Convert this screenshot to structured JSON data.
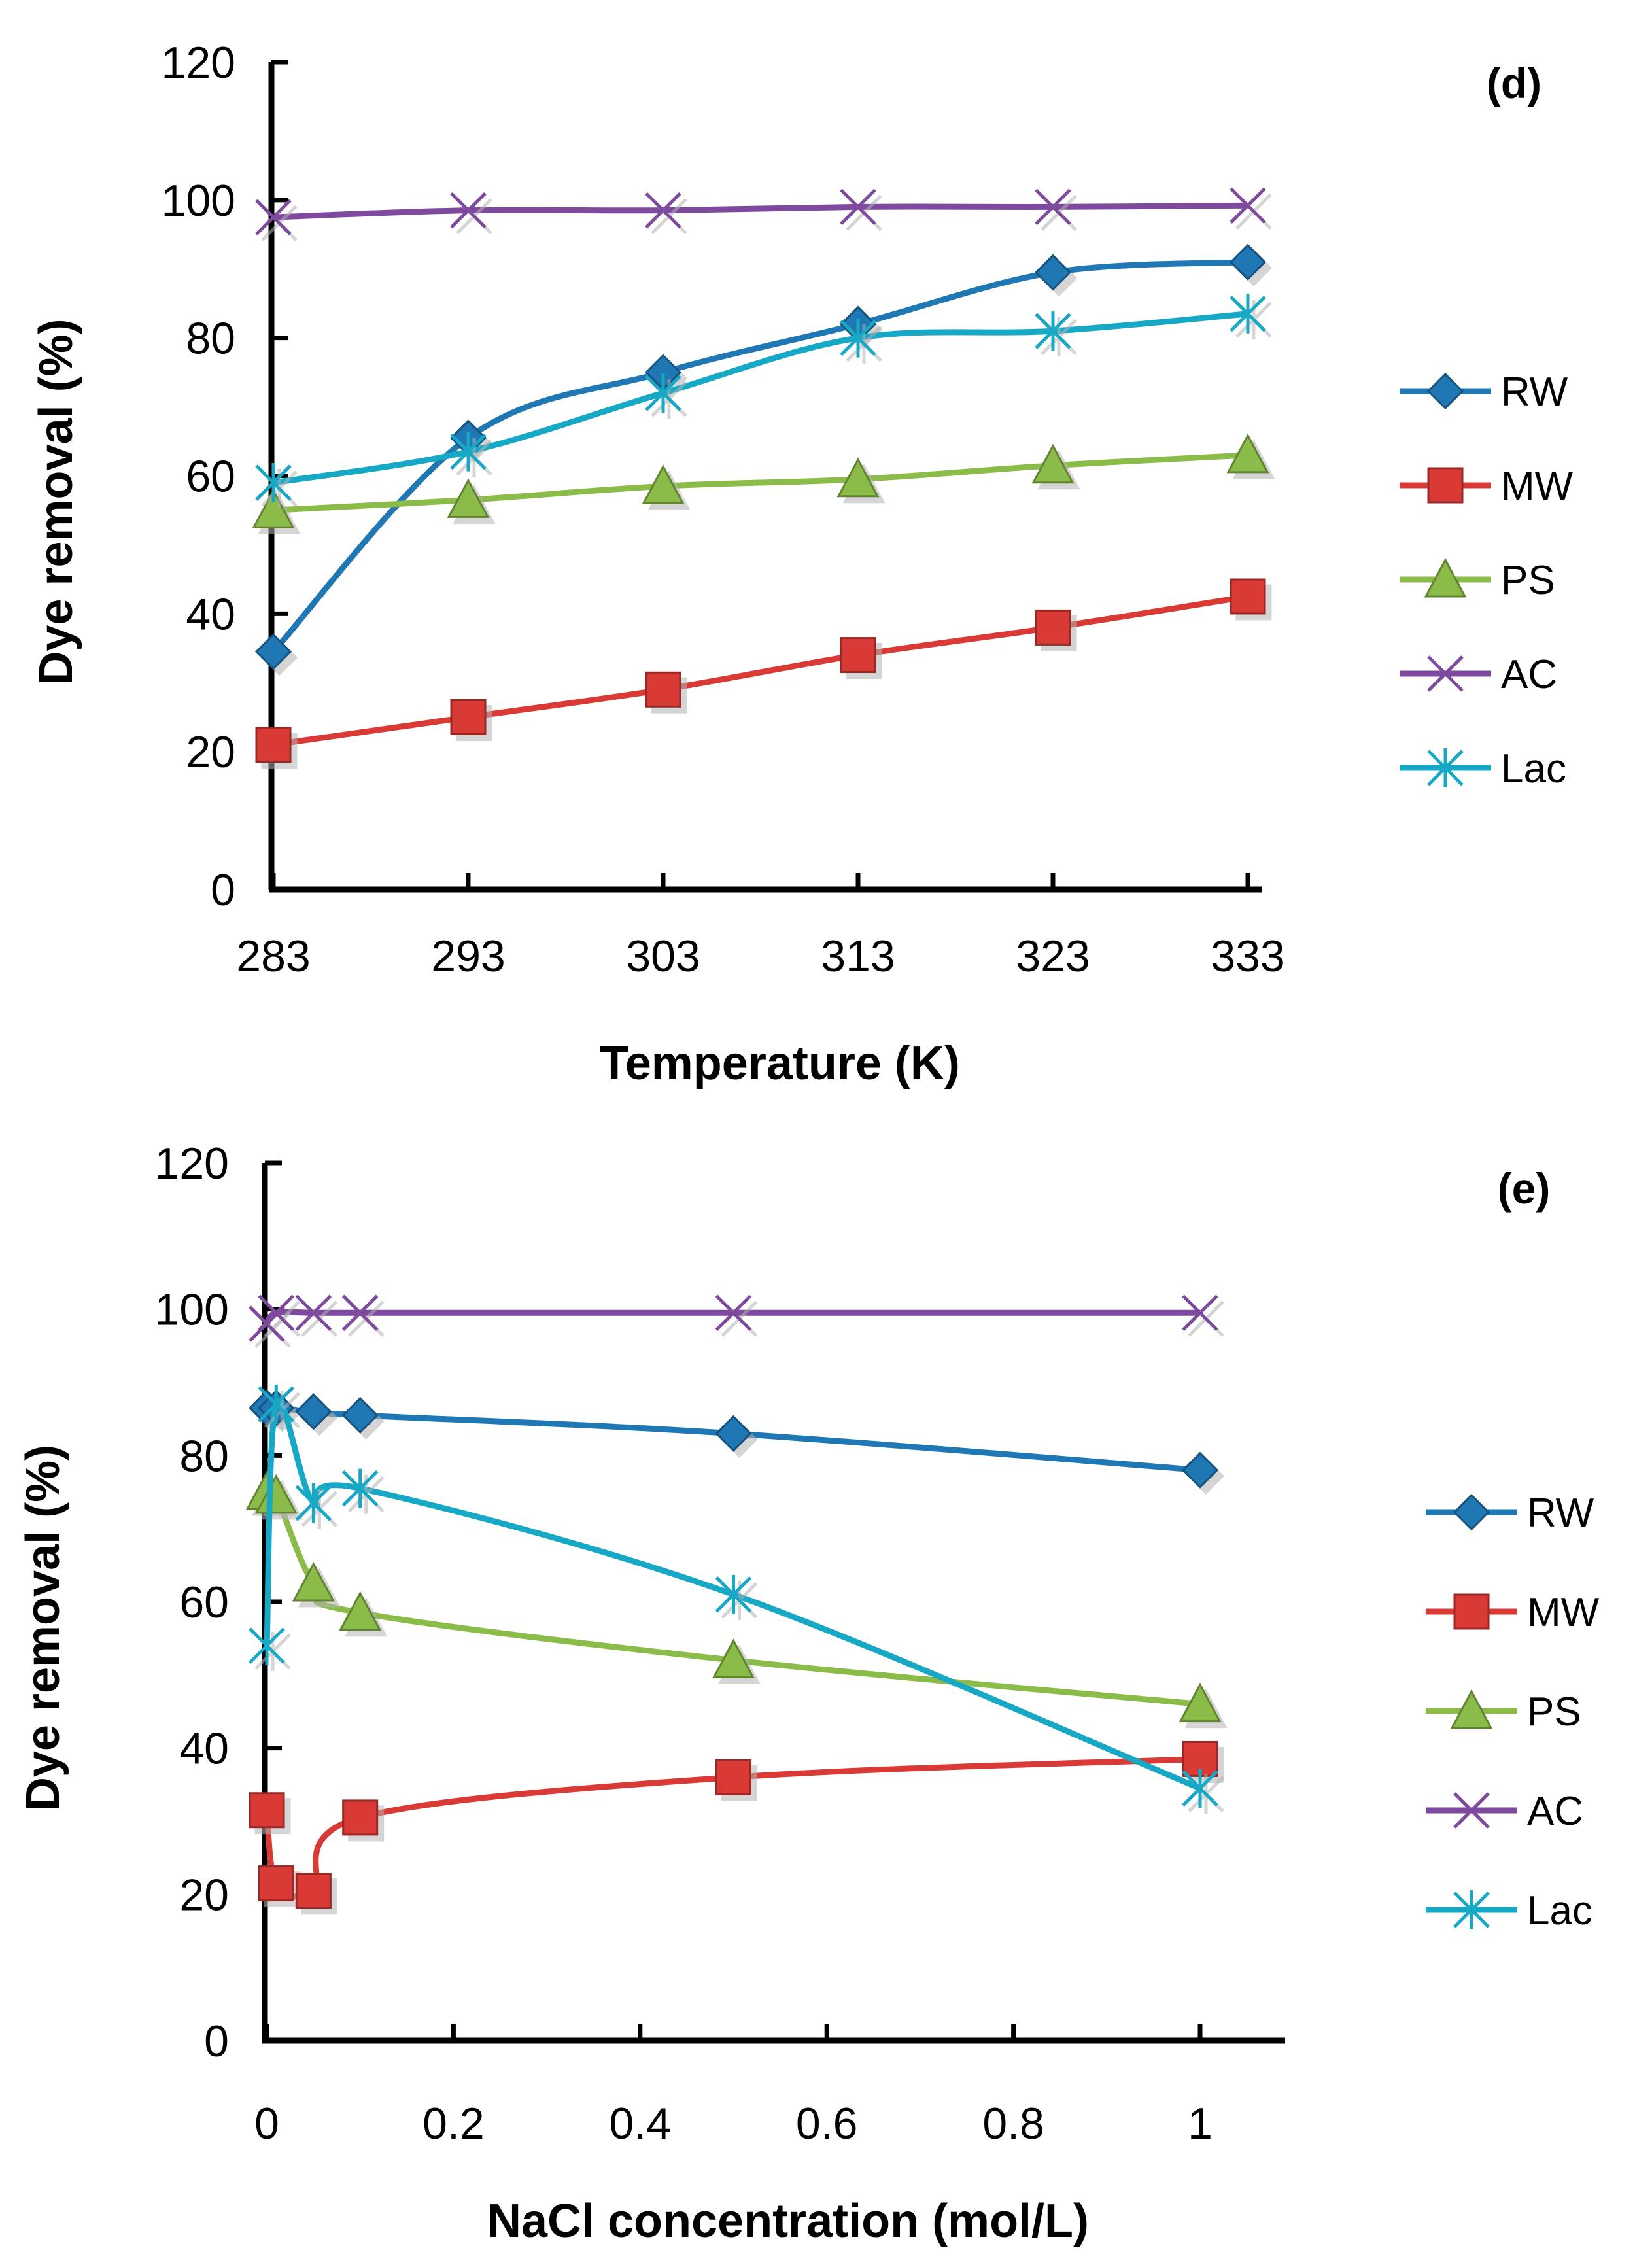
{
  "chart_data": [
    {
      "type": "line",
      "panel_label": "(d)",
      "xlabel": "Temperature (K)",
      "ylabel": "Dye removal (%)",
      "x_ticks": [
        "283",
        "293",
        "303",
        "313",
        "323",
        "333"
      ],
      "y_ticks": [
        "0",
        "20",
        "40",
        "60",
        "80",
        "100",
        "120"
      ],
      "xlim": [
        283,
        333
      ],
      "ylim": [
        0,
        120
      ],
      "x": [
        283,
        293,
        303,
        313,
        323,
        333
      ],
      "series": [
        {
          "name": "RW",
          "color": "#1f77b4",
          "marker": "diamond",
          "values": [
            34.5,
            65.5,
            75,
            82,
            89.5,
            91
          ]
        },
        {
          "name": "MW",
          "color": "#d93a35",
          "marker": "square",
          "values": [
            21,
            25,
            29,
            34,
            38,
            42.5
          ]
        },
        {
          "name": "PS",
          "color": "#8bbb48",
          "marker": "triangle",
          "values": [
            55,
            56.5,
            58.5,
            59.5,
            61.5,
            63
          ]
        },
        {
          "name": "AC",
          "color": "#7d4a9e",
          "marker": "x",
          "values": [
            97.5,
            98.5,
            98.5,
            99,
            99,
            99.2
          ]
        },
        {
          "name": "Lac",
          "color": "#17a8c6",
          "marker": "asterisk",
          "values": [
            59,
            63.5,
            72,
            80,
            81,
            83.5
          ]
        }
      ],
      "legend_position": "right"
    },
    {
      "type": "line",
      "panel_label": "(e)",
      "xlabel": "NaCl concentration (mol/L)",
      "ylabel": "Dye removal (%)",
      "x_ticks": [
        "0",
        "0.2",
        "0.4",
        "0.6",
        "0.8",
        "1"
      ],
      "y_ticks": [
        "0",
        "20",
        "40",
        "60",
        "80",
        "100",
        "120"
      ],
      "xlim": [
        0,
        1.1
      ],
      "ylim": [
        0,
        120
      ],
      "x": [
        0,
        0.01,
        0.05,
        0.1,
        0.5,
        1.0
      ],
      "series": [
        {
          "name": "RW",
          "color": "#1f77b4",
          "marker": "diamond",
          "values": [
            86.5,
            86.5,
            86,
            85.5,
            83,
            78
          ]
        },
        {
          "name": "MW",
          "color": "#d93a35",
          "marker": "square",
          "values": [
            31.5,
            21.5,
            20.5,
            30.5,
            36,
            38.5
          ]
        },
        {
          "name": "PS",
          "color": "#8bbb48",
          "marker": "triangle",
          "values": [
            75,
            74.5,
            62.5,
            58.5,
            52,
            46
          ]
        },
        {
          "name": "AC",
          "color": "#7d4a9e",
          "marker": "x",
          "values": [
            98,
            99.5,
            99.5,
            99.5,
            99.5,
            99.5
          ]
        },
        {
          "name": "Lac",
          "color": "#17a8c6",
          "marker": "asterisk",
          "values": [
            54,
            87,
            73.5,
            75.5,
            61,
            34.5
          ]
        }
      ],
      "legend_position": "right"
    }
  ]
}
